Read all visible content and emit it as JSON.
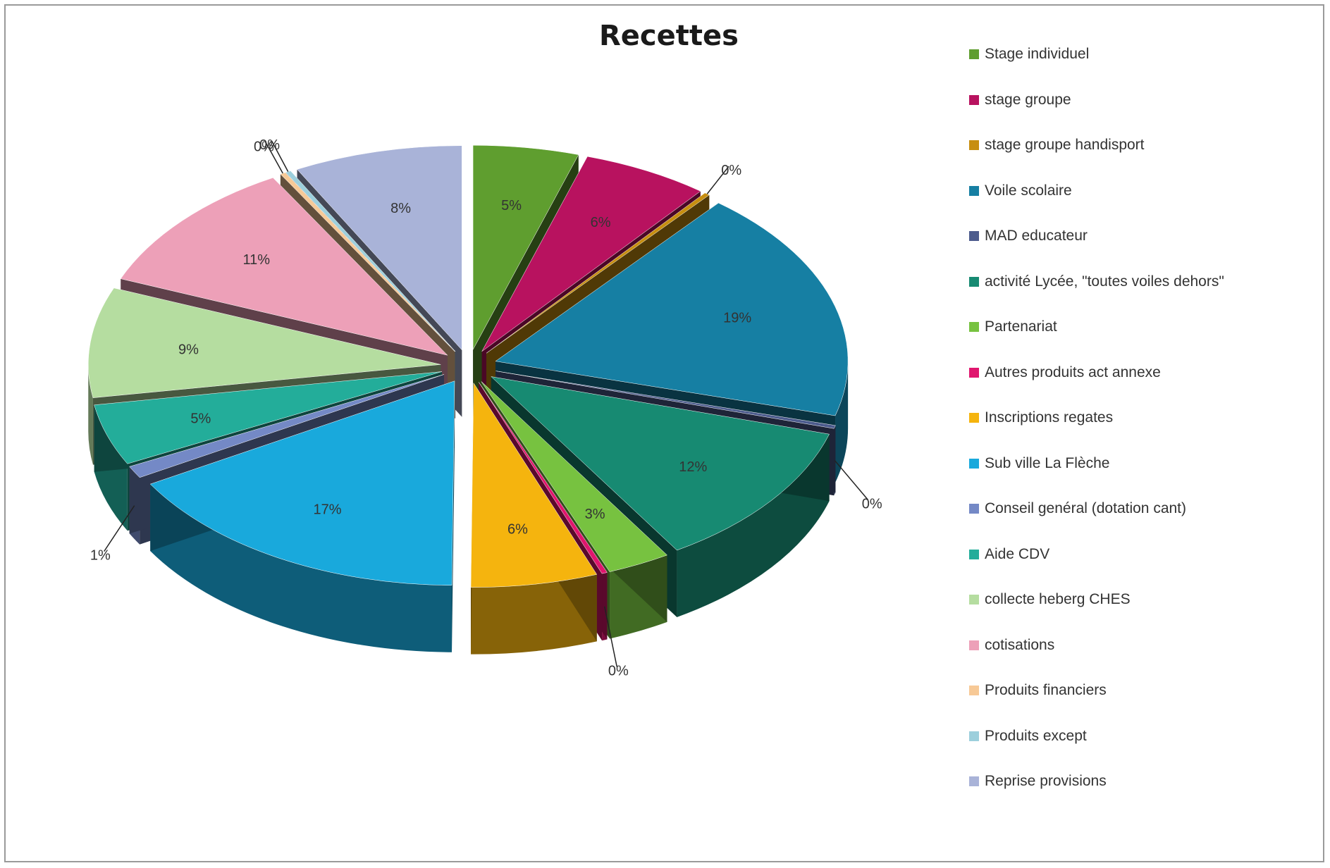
{
  "chart_data": {
    "type": "pie",
    "title": "Recettes",
    "legend_position": "right",
    "slices": [
      {
        "name": "Stage individuel",
        "value": 5,
        "label": "5%",
        "color": "#5f9e2f"
      },
      {
        "name": "stage groupe",
        "value": 6,
        "label": "6%",
        "color": "#b8125f"
      },
      {
        "name": "stage groupe handisport",
        "value": 0,
        "label": "0%",
        "color": "#c78e0f"
      },
      {
        "name": "Voile scolaire",
        "value": 19,
        "label": "19%",
        "color": "#167fa3"
      },
      {
        "name": "MAD educateur",
        "value": 0,
        "label": "0%",
        "color": "#4c5b8d"
      },
      {
        "name": "activité Lycée, \"toutes voiles dehors\"",
        "value": 12,
        "label": "12%",
        "color": "#178a72"
      },
      {
        "name": "Partenariat",
        "value": 3,
        "label": "3%",
        "color": "#77c240"
      },
      {
        "name": "Autres produits act annexe",
        "value": 0,
        "label": "0%",
        "color": "#e0166e"
      },
      {
        "name": "Inscriptions regates",
        "value": 6,
        "label": "6%",
        "color": "#f5b40e"
      },
      {
        "name": "Sub ville La Flèche",
        "value": 17,
        "label": "17%",
        "color": "#19a9dc"
      },
      {
        "name": "Conseil genéral (dotation cant)",
        "value": 1,
        "label": "1%",
        "color": "#7489c6"
      },
      {
        "name": "Aide CDV",
        "value": 5,
        "label": "5%",
        "color": "#23ad9a"
      },
      {
        "name": "collecte heberg CHES",
        "value": 9,
        "label": "9%",
        "color": "#b5dda0"
      },
      {
        "name": "cotisations",
        "value": 11,
        "label": "11%",
        "color": "#eda0b8"
      },
      {
        "name": "Produits financiers",
        "value": 0,
        "label": "0%",
        "color": "#f7c996"
      },
      {
        "name": "Produits except",
        "value": 0,
        "label": "0%",
        "color": "#9ccfdc"
      },
      {
        "name": "Reprise provisions",
        "value": 8,
        "label": "8%",
        "color": "#a9b3d8"
      }
    ]
  }
}
